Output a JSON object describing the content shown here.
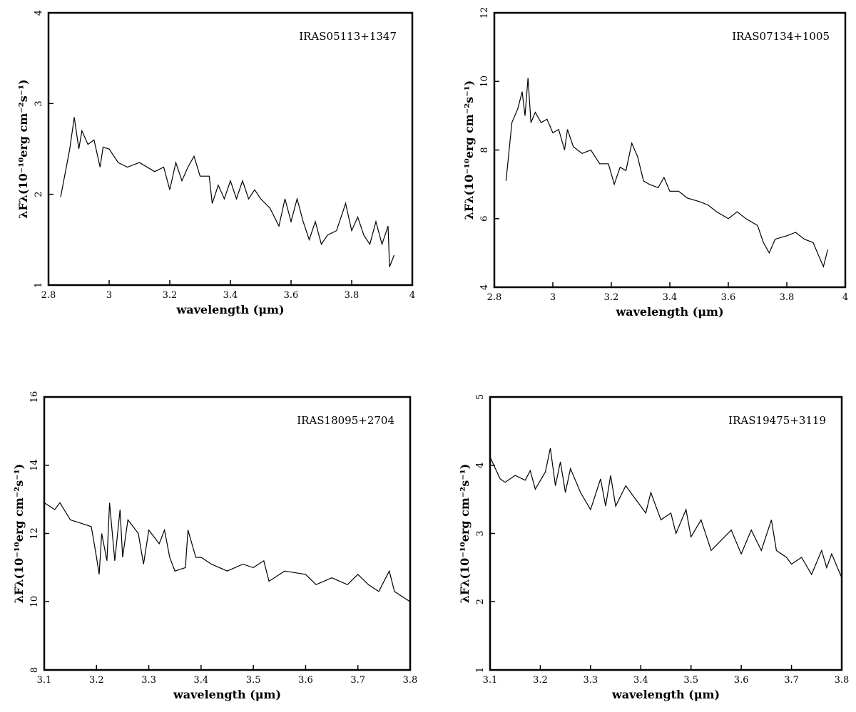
{
  "chart_data": [
    {
      "type": "line",
      "annotation": "IRAS05113+1347",
      "xlabel": "wavelength (μm)",
      "ylabel": "λFλ(10⁻¹⁰erg cm⁻²s⁻¹)",
      "xlim": [
        2.8,
        4
      ],
      "xticks": [
        2.8,
        3,
        3.2,
        3.4,
        3.6,
        3.8,
        4
      ],
      "ylim": [
        1,
        4
      ],
      "yticks": [
        1,
        2,
        3,
        4
      ],
      "color": "#000000",
      "x": [
        2.84,
        2.87,
        2.885,
        2.9,
        2.91,
        2.93,
        2.95,
        2.97,
        2.98,
        3.0,
        3.03,
        3.06,
        3.1,
        3.15,
        3.18,
        3.2,
        3.22,
        3.24,
        3.26,
        3.28,
        3.3,
        3.33,
        3.34,
        3.36,
        3.38,
        3.4,
        3.42,
        3.44,
        3.46,
        3.48,
        3.5,
        3.53,
        3.56,
        3.58,
        3.6,
        3.62,
        3.64,
        3.66,
        3.68,
        3.7,
        3.72,
        3.75,
        3.78,
        3.8,
        3.82,
        3.84,
        3.86,
        3.88,
        3.9,
        3.92,
        3.925,
        3.94
      ],
      "values": [
        1.97,
        2.5,
        2.85,
        2.5,
        2.7,
        2.55,
        2.6,
        2.3,
        2.52,
        2.5,
        2.35,
        2.3,
        2.35,
        2.25,
        2.3,
        2.05,
        2.35,
        2.15,
        2.3,
        2.42,
        2.2,
        2.2,
        1.9,
        2.1,
        1.95,
        2.15,
        1.95,
        2.15,
        1.95,
        2.05,
        1.95,
        1.85,
        1.65,
        1.95,
        1.7,
        1.95,
        1.7,
        1.5,
        1.7,
        1.45,
        1.55,
        1.6,
        1.9,
        1.6,
        1.75,
        1.55,
        1.45,
        1.7,
        1.45,
        1.65,
        1.2,
        1.33
      ]
    },
    {
      "type": "line",
      "annotation": "IRAS07134+1005",
      "xlabel": "wavelength (μm)",
      "ylabel": "λFλ(10⁻¹⁰erg cm⁻²s⁻¹)",
      "xlim": [
        2.8,
        4
      ],
      "xticks": [
        2.8,
        3,
        3.2,
        3.4,
        3.6,
        3.8,
        4
      ],
      "ylim": [
        4,
        12
      ],
      "yticks": [
        4,
        6,
        8,
        10,
        12
      ],
      "color": "#000000",
      "x": [
        2.84,
        2.86,
        2.88,
        2.895,
        2.905,
        2.915,
        2.925,
        2.94,
        2.96,
        2.98,
        3.0,
        3.02,
        3.04,
        3.05,
        3.07,
        3.1,
        3.13,
        3.16,
        3.19,
        3.21,
        3.23,
        3.25,
        3.27,
        3.29,
        3.31,
        3.33,
        3.36,
        3.38,
        3.4,
        3.43,
        3.46,
        3.5,
        3.53,
        3.56,
        3.6,
        3.63,
        3.66,
        3.7,
        3.72,
        3.74,
        3.76,
        3.8,
        3.83,
        3.86,
        3.89,
        3.91,
        3.925,
        3.94
      ],
      "values": [
        7.1,
        8.8,
        9.2,
        9.7,
        9.0,
        10.1,
        8.8,
        9.1,
        8.8,
        8.9,
        8.5,
        8.6,
        8.0,
        8.6,
        8.1,
        7.9,
        8.0,
        7.6,
        7.6,
        7.0,
        7.5,
        7.4,
        8.2,
        7.8,
        7.1,
        7.0,
        6.9,
        7.2,
        6.8,
        6.8,
        6.6,
        6.5,
        6.4,
        6.2,
        6.0,
        6.2,
        6.0,
        5.8,
        5.3,
        5.0,
        5.4,
        5.5,
        5.6,
        5.4,
        5.3,
        4.9,
        4.6,
        5.1
      ]
    },
    {
      "type": "line",
      "annotation": "IRAS18095+2704",
      "xlabel": "wavelength (μm)",
      "ylabel": "λFλ(10⁻¹⁰erg cm⁻²s⁻¹)",
      "xlim": [
        3.1,
        3.8
      ],
      "xticks": [
        3.1,
        3.2,
        3.3,
        3.4,
        3.5,
        3.6,
        3.7,
        3.8
      ],
      "ylim": [
        8,
        16
      ],
      "yticks": [
        8,
        10,
        12,
        14,
        16
      ],
      "color": "#000000",
      "x": [
        3.1,
        3.12,
        3.13,
        3.15,
        3.17,
        3.19,
        3.2,
        3.205,
        3.21,
        3.22,
        3.225,
        3.235,
        3.245,
        3.25,
        3.26,
        3.28,
        3.29,
        3.3,
        3.32,
        3.33,
        3.34,
        3.35,
        3.37,
        3.375,
        3.39,
        3.4,
        3.42,
        3.45,
        3.48,
        3.5,
        3.52,
        3.53,
        3.56,
        3.6,
        3.62,
        3.65,
        3.68,
        3.7,
        3.72,
        3.74,
        3.76,
        3.77,
        3.78,
        3.8
      ],
      "values": [
        12.9,
        12.7,
        12.9,
        12.4,
        12.3,
        12.2,
        11.3,
        10.8,
        12.0,
        11.2,
        12.9,
        11.2,
        12.7,
        11.3,
        12.4,
        12.0,
        11.1,
        12.1,
        11.7,
        12.1,
        11.3,
        10.9,
        11.0,
        12.1,
        11.3,
        11.3,
        11.1,
        10.9,
        11.1,
        11.0,
        11.2,
        10.6,
        10.9,
        10.8,
        10.5,
        10.7,
        10.5,
        10.8,
        10.5,
        10.3,
        10.9,
        10.3,
        10.2,
        10.0
      ]
    },
    {
      "type": "line",
      "annotation": "IRAS19475+3119",
      "xlabel": "wavelength (μm)",
      "ylabel": "λFλ(10⁻¹⁰erg cm⁻²s⁻¹)",
      "xlim": [
        3.1,
        3.8
      ],
      "xticks": [
        3.1,
        3.2,
        3.3,
        3.4,
        3.5,
        3.6,
        3.7,
        3.8
      ],
      "ylim": [
        1,
        5
      ],
      "yticks": [
        1,
        2,
        3,
        4,
        5
      ],
      "color": "#000000",
      "x": [
        3.1,
        3.12,
        3.13,
        3.15,
        3.17,
        3.18,
        3.19,
        3.21,
        3.22,
        3.23,
        3.24,
        3.25,
        3.26,
        3.28,
        3.3,
        3.32,
        3.33,
        3.34,
        3.35,
        3.37,
        3.39,
        3.41,
        3.42,
        3.44,
        3.46,
        3.47,
        3.49,
        3.5,
        3.52,
        3.54,
        3.56,
        3.58,
        3.6,
        3.62,
        3.64,
        3.66,
        3.67,
        3.69,
        3.7,
        3.72,
        3.74,
        3.76,
        3.77,
        3.78,
        3.8
      ],
      "values": [
        4.12,
        3.8,
        3.75,
        3.85,
        3.78,
        3.92,
        3.65,
        3.9,
        4.25,
        3.7,
        4.05,
        3.6,
        3.95,
        3.6,
        3.35,
        3.8,
        3.4,
        3.85,
        3.4,
        3.7,
        3.5,
        3.3,
        3.6,
        3.2,
        3.3,
        3.0,
        3.35,
        2.95,
        3.2,
        2.75,
        2.9,
        3.05,
        2.7,
        3.05,
        2.75,
        3.2,
        2.75,
        2.65,
        2.55,
        2.65,
        2.4,
        2.75,
        2.5,
        2.7,
        2.35
      ]
    }
  ]
}
